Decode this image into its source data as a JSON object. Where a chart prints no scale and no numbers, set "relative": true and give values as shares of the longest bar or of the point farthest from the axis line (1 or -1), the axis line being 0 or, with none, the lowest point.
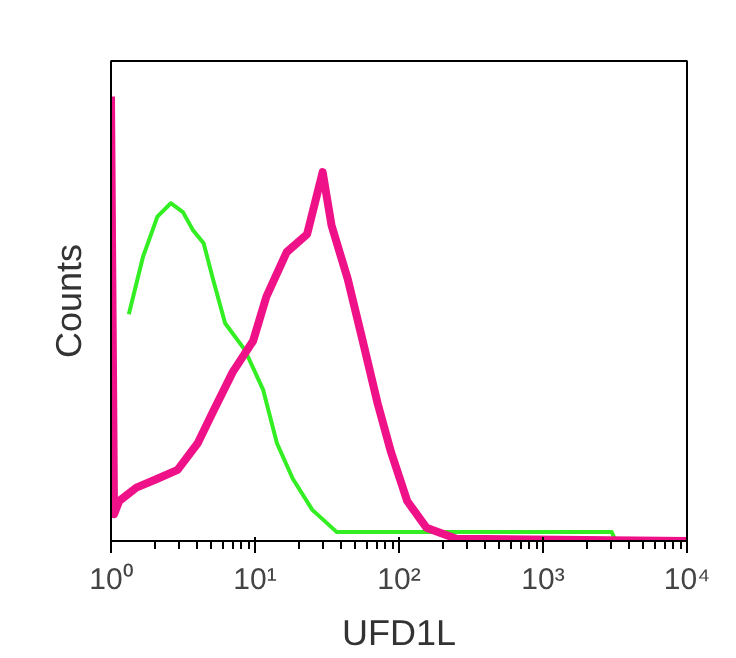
{
  "chart_data": {
    "type": "line",
    "xlabel": "UFD1L",
    "ylabel": "Counts",
    "log": "x",
    "relative": true,
    "grid": false,
    "tick_labels": "x",
    "xlim": [
      1,
      10000
    ],
    "xticks": [
      {
        "value": 1,
        "label": "10⁰"
      },
      {
        "value": 10,
        "label": "10¹"
      },
      {
        "value": 100,
        "label": "10²"
      },
      {
        "value": 1000,
        "label": "10³"
      },
      {
        "value": 10000,
        "label": "10⁴"
      }
    ],
    "series": [
      {
        "color": "#33ee22",
        "x": [
          1.33,
          1.67,
          2.1,
          2.6,
          3.16,
          3.7,
          4.4,
          5.1,
          6.2,
          8.5,
          11.4,
          14.2,
          18.3,
          25,
          37,
          60,
          150,
          400,
          1000,
          2000,
          3000,
          3200
        ],
        "values": [
          0.51,
          0.64,
          0.73,
          0.76,
          0.74,
          0.7,
          0.67,
          0.59,
          0.49,
          0.43,
          0.34,
          0.22,
          0.14,
          0.07,
          0.02,
          0.02,
          0.02,
          0.02,
          0.02,
          0.02,
          0.02,
          0
        ]
      },
      {
        "color": "#ee1188",
        "x": [
          1,
          1.05,
          1.14,
          1.5,
          2.1,
          2.9,
          4,
          5.1,
          7,
          9.7,
          12,
          16.6,
          23,
          29.5,
          34,
          44,
          56,
          71,
          88,
          114,
          155,
          250,
          10000
        ],
        "values": [
          1,
          0.06,
          0.09,
          0.12,
          0.14,
          0.16,
          0.22,
          0.29,
          0.38,
          0.45,
          0.55,
          0.65,
          0.69,
          0.83,
          0.71,
          0.59,
          0.45,
          0.31,
          0.2,
          0.09,
          0.03,
          0.005,
          0
        ]
      }
    ]
  }
}
